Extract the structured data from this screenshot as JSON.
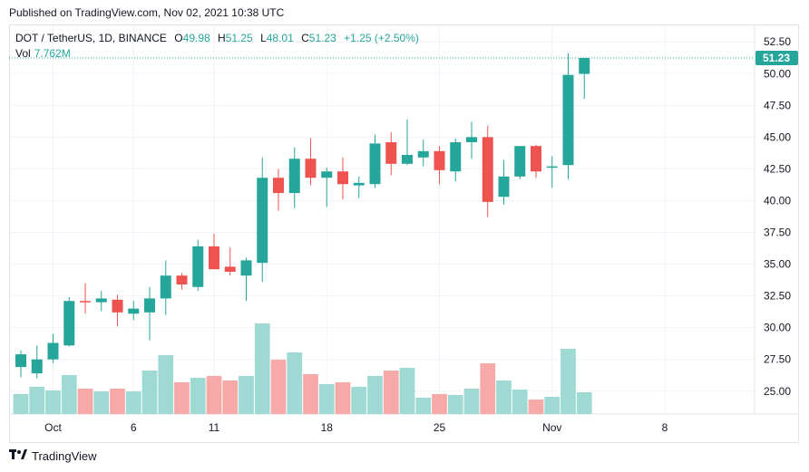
{
  "header": {
    "published": "Published on TradingView.com, Nov 02, 2021 10:38 UTC"
  },
  "legend": {
    "symbol": "DOT / TetherUS, 1D, BINANCE",
    "open_label": "O",
    "open": "49.98",
    "high_label": "H",
    "high": "51.25",
    "low_label": "L",
    "low": "48.01",
    "close_label": "C",
    "close": "51.23",
    "change": "+1.25 (+2.50%)",
    "vol_label": "Vol",
    "vol_value": "7.762M"
  },
  "price_tag": "51.23",
  "branding": {
    "name": "TradingView",
    "logo_icon": "tradingview-logo-icon"
  },
  "colors": {
    "up": "#26a69a",
    "down": "#ef5350",
    "vol_up": "#9fd9d3",
    "vol_down": "#f7a9a7",
    "grid": "#f0f3fa",
    "price_line": "#26a69a"
  },
  "chart_data": {
    "type": "candlestick",
    "y_axis": {
      "ticks": [
        "25.00",
        "27.50",
        "30.00",
        "32.50",
        "35.00",
        "37.50",
        "40.00",
        "42.50",
        "45.00",
        "47.50",
        "50.00",
        "52.50"
      ],
      "range": [
        23.2,
        53.8
      ]
    },
    "x_axis": {
      "tick_labels": [
        "Oct",
        "6",
        "11",
        "18",
        "25",
        "Nov",
        "8"
      ],
      "tick_dates": [
        "2021-10-01",
        "2021-10-06",
        "2021-10-11",
        "2021-10-18",
        "2021-10-25",
        "2021-11-01",
        "2021-11-08"
      ]
    },
    "volume_scale_max": 1.0,
    "candles": [
      {
        "date": "2021-09-29",
        "o": 26.9,
        "h": 28.2,
        "l": 26.1,
        "c": 27.9,
        "v": 0.22
      },
      {
        "date": "2021-09-30",
        "o": 26.4,
        "h": 28.6,
        "l": 26.0,
        "c": 27.5,
        "v": 0.3
      },
      {
        "date": "2021-10-01",
        "o": 27.5,
        "h": 29.5,
        "l": 27.2,
        "c": 28.8,
        "v": 0.26
      },
      {
        "date": "2021-10-02",
        "o": 28.6,
        "h": 32.4,
        "l": 28.5,
        "c": 32.1,
        "v": 0.43
      },
      {
        "date": "2021-10-03",
        "o": 32.1,
        "h": 33.5,
        "l": 31.1,
        "c": 32.0,
        "v": 0.28
      },
      {
        "date": "2021-10-04",
        "o": 32.0,
        "h": 32.9,
        "l": 31.3,
        "c": 32.3,
        "v": 0.25
      },
      {
        "date": "2021-10-05",
        "o": 32.2,
        "h": 32.6,
        "l": 30.1,
        "c": 31.2,
        "v": 0.28
      },
      {
        "date": "2021-10-06",
        "o": 31.1,
        "h": 32.1,
        "l": 30.6,
        "c": 31.5,
        "v": 0.25
      },
      {
        "date": "2021-10-07",
        "o": 31.2,
        "h": 33.2,
        "l": 29.0,
        "c": 32.3,
        "v": 0.48
      },
      {
        "date": "2021-10-08",
        "o": 32.3,
        "h": 35.3,
        "l": 31.0,
        "c": 34.1,
        "v": 0.65
      },
      {
        "date": "2021-10-09",
        "o": 34.1,
        "h": 34.3,
        "l": 33.0,
        "c": 33.4,
        "v": 0.35
      },
      {
        "date": "2021-10-10",
        "o": 33.2,
        "h": 36.9,
        "l": 32.9,
        "c": 36.4,
        "v": 0.4
      },
      {
        "date": "2021-10-11",
        "o": 36.4,
        "h": 37.4,
        "l": 34.6,
        "c": 34.6,
        "v": 0.42
      },
      {
        "date": "2021-10-12",
        "o": 34.8,
        "h": 36.3,
        "l": 34.1,
        "c": 34.4,
        "v": 0.37
      },
      {
        "date": "2021-10-13",
        "o": 34.1,
        "h": 35.5,
        "l": 32.1,
        "c": 35.3,
        "v": 0.42
      },
      {
        "date": "2021-10-14",
        "o": 35.1,
        "h": 43.4,
        "l": 33.6,
        "c": 41.8,
        "v": 1.0
      },
      {
        "date": "2021-10-15",
        "o": 41.8,
        "h": 42.5,
        "l": 39.2,
        "c": 40.6,
        "v": 0.6
      },
      {
        "date": "2021-10-16",
        "o": 40.6,
        "h": 44.2,
        "l": 39.4,
        "c": 43.3,
        "v": 0.68
      },
      {
        "date": "2021-10-17",
        "o": 43.3,
        "h": 44.9,
        "l": 41.2,
        "c": 41.8,
        "v": 0.44
      },
      {
        "date": "2021-10-18",
        "o": 41.8,
        "h": 42.6,
        "l": 39.5,
        "c": 42.3,
        "v": 0.33
      },
      {
        "date": "2021-10-19",
        "o": 42.3,
        "h": 43.4,
        "l": 40.1,
        "c": 41.3,
        "v": 0.35
      },
      {
        "date": "2021-10-20",
        "o": 41.2,
        "h": 41.9,
        "l": 40.2,
        "c": 41.4,
        "v": 0.3
      },
      {
        "date": "2021-10-21",
        "o": 41.3,
        "h": 45.2,
        "l": 41.0,
        "c": 44.5,
        "v": 0.42
      },
      {
        "date": "2021-10-22",
        "o": 44.6,
        "h": 45.4,
        "l": 42.0,
        "c": 42.9,
        "v": 0.48
      },
      {
        "date": "2021-10-23",
        "o": 42.9,
        "h": 46.4,
        "l": 42.8,
        "c": 43.6,
        "v": 0.51
      },
      {
        "date": "2021-10-24",
        "o": 43.4,
        "h": 44.8,
        "l": 42.7,
        "c": 43.9,
        "v": 0.18
      },
      {
        "date": "2021-10-25",
        "o": 43.9,
        "h": 44.3,
        "l": 41.3,
        "c": 42.4,
        "v": 0.22
      },
      {
        "date": "2021-10-26",
        "o": 42.3,
        "h": 44.9,
        "l": 41.5,
        "c": 44.6,
        "v": 0.21
      },
      {
        "date": "2021-10-27",
        "o": 44.6,
        "h": 46.2,
        "l": 43.3,
        "c": 45.0,
        "v": 0.28
      },
      {
        "date": "2021-10-28",
        "o": 45.0,
        "h": 45.9,
        "l": 38.7,
        "c": 39.9,
        "v": 0.56
      },
      {
        "date": "2021-10-29",
        "o": 40.3,
        "h": 43.2,
        "l": 39.7,
        "c": 41.9,
        "v": 0.37
      },
      {
        "date": "2021-10-30",
        "o": 41.9,
        "h": 44.3,
        "l": 41.7,
        "c": 44.3,
        "v": 0.27
      },
      {
        "date": "2021-10-31",
        "o": 44.3,
        "h": 44.4,
        "l": 41.8,
        "c": 42.3,
        "v": 0.16
      },
      {
        "date": "2021-11-01",
        "o": 42.7,
        "h": 43.5,
        "l": 41.0,
        "c": 42.7,
        "v": 0.19
      },
      {
        "date": "2021-11-02a",
        "o": 42.8,
        "h": 51.6,
        "l": 41.7,
        "c": 49.9,
        "v": 0.72
      },
      {
        "date": "2021-11-02b",
        "o": 49.98,
        "h": 51.25,
        "l": 48.01,
        "c": 51.23,
        "v": 0.24
      }
    ]
  }
}
